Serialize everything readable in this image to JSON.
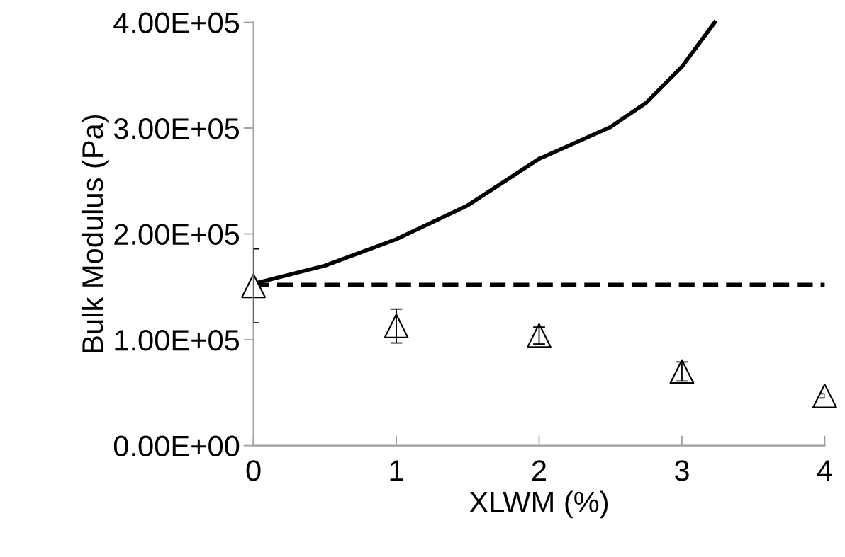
{
  "chart_data": {
    "type": "scatter",
    "xlabel": "XLWM (%)",
    "ylabel": "Bulk Modulus (Pa)",
    "xlim": [
      0,
      4
    ],
    "xticks": [
      0,
      1,
      2,
      3,
      4
    ],
    "ylim": [
      0,
      400000
    ],
    "yticks": [
      {
        "value": 0,
        "label": "0.00E+00"
      },
      {
        "value": 100000,
        "label": "1.00E+05"
      },
      {
        "value": 200000,
        "label": "2.00E+05"
      },
      {
        "value": 300000,
        "label": "3.00E+05"
      },
      {
        "value": 400000,
        "label": "4.00E+05"
      }
    ],
    "grid": false,
    "series": [
      {
        "type": "line",
        "color": "#000000",
        "line_style": "solid",
        "marker": "none",
        "x": [
          0,
          0.5,
          1,
          1.5,
          2,
          2.5,
          2.75,
          3,
          3.23
        ],
        "values": [
          153000,
          170000,
          195000,
          227000,
          271000,
          301000,
          324000,
          358000,
          400000
        ]
      },
      {
        "type": "line",
        "color": "#000000",
        "line_style": "dashed",
        "marker": "none",
        "x": [
          0,
          4
        ],
        "values": [
          152000,
          152000
        ]
      },
      {
        "color": "#000000",
        "marker": "triangle",
        "x": [
          0,
          1,
          2,
          3,
          4
        ],
        "values": [
          151000,
          113000,
          104000,
          70000,
          47000
        ],
        "errors": [
          35000,
          16000,
          8000,
          9000,
          2000
        ]
      }
    ]
  }
}
